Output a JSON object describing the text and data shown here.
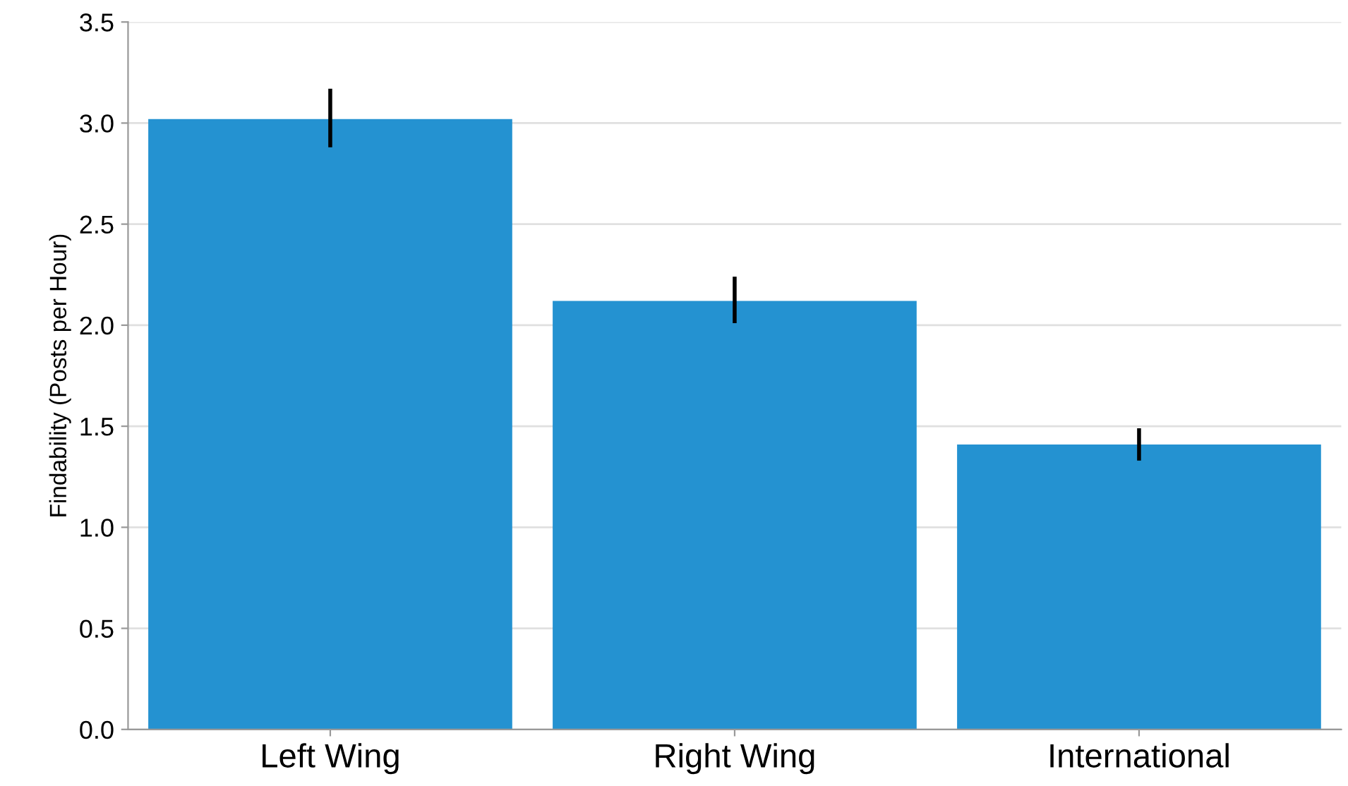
{
  "chart_data": {
    "type": "bar",
    "ylabel": "Findability (Posts per Hour)",
    "categories": [
      "Left Wing",
      "Right Wing",
      "International"
    ],
    "values": [
      3.02,
      2.12,
      1.41
    ],
    "errors": [
      [
        2.88,
        3.17
      ],
      [
        2.01,
        2.24
      ],
      [
        1.33,
        1.49
      ]
    ],
    "color": "#2492d1",
    "ylim": [
      0,
      3.5
    ],
    "yticks": [
      {
        "value": 0,
        "label": "0.0"
      },
      {
        "value": 0.5,
        "label": "0.5"
      },
      {
        "value": 1,
        "label": "1.0"
      },
      {
        "value": 1.5,
        "label": "1.5"
      },
      {
        "value": 2,
        "label": "2.0"
      },
      {
        "value": 2.5,
        "label": "2.5"
      },
      {
        "value": 3,
        "label": "3.0"
      },
      {
        "value": 3.5,
        "label": "3.5"
      }
    ],
    "grid": "y"
  }
}
